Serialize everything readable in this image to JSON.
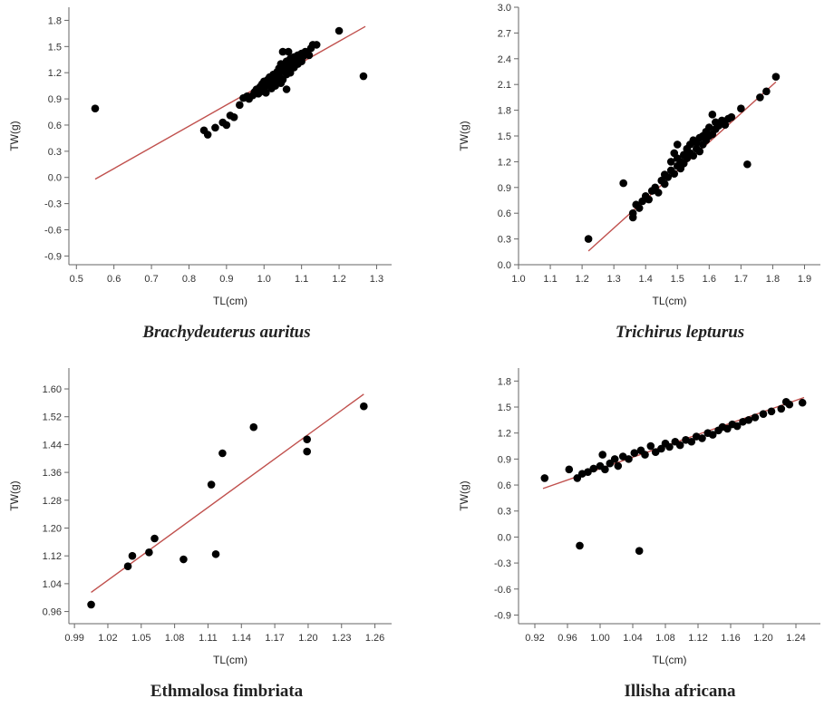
{
  "chart_data": [
    {
      "type": "scatter",
      "title": "Brachydeuterus auritus",
      "title_style": "italic",
      "xlabel": "TL(cm)",
      "ylabel": "TW(g)",
      "xlim": [
        0.48,
        1.34
      ],
      "ylim": [
        -1.0,
        1.95
      ],
      "xticks": [
        0.5,
        0.6,
        0.7,
        0.8,
        0.9,
        1.0,
        1.1,
        1.2,
        1.3
      ],
      "xtick_labels": [
        "0.5",
        "0.6",
        "0.7",
        "0.8",
        "0.9",
        "1.0",
        "1.1",
        "1.2",
        "1.3"
      ],
      "yticks": [
        -0.9,
        -0.6,
        -0.3,
        0.0,
        0.3,
        0.6,
        0.9,
        1.2,
        1.5,
        1.8
      ],
      "ytick_labels": [
        "-0.9",
        "-0.6",
        "-0.3",
        "0.0",
        "0.3",
        "0.6",
        "0.9",
        "1.2",
        "1.5",
        "1.8"
      ],
      "fit_line": {
        "x": [
          0.55,
          1.27
        ],
        "y": [
          -0.02,
          1.73
        ],
        "color": "#c0504d"
      },
      "points": [
        [
          0.55,
          0.79
        ],
        [
          0.84,
          0.54
        ],
        [
          0.85,
          0.49
        ],
        [
          0.87,
          0.57
        ],
        [
          0.89,
          0.63
        ],
        [
          0.9,
          0.6
        ],
        [
          0.91,
          0.71
        ],
        [
          0.92,
          0.69
        ],
        [
          0.935,
          0.83
        ],
        [
          0.945,
          0.91
        ],
        [
          0.955,
          0.93
        ],
        [
          0.96,
          0.9
        ],
        [
          0.97,
          0.94
        ],
        [
          0.975,
          0.98
        ],
        [
          0.98,
          1.01
        ],
        [
          0.985,
          0.96
        ],
        [
          0.99,
          1.04
        ],
        [
          0.99,
          0.98
        ],
        [
          0.995,
          1.07
        ],
        [
          1.0,
          1.1
        ],
        [
          1.0,
          1.02
        ],
        [
          1.005,
          0.97
        ],
        [
          1.01,
          1.12
        ],
        [
          1.01,
          1.06
        ],
        [
          1.015,
          1.15
        ],
        [
          1.02,
          1.09
        ],
        [
          1.02,
          1.02
        ],
        [
          1.025,
          1.18
        ],
        [
          1.03,
          1.13
        ],
        [
          1.03,
          1.05
        ],
        [
          1.035,
          1.21
        ],
        [
          1.035,
          1.1
        ],
        [
          1.04,
          1.25
        ],
        [
          1.04,
          1.16
        ],
        [
          1.045,
          1.3
        ],
        [
          1.045,
          1.08
        ],
        [
          1.05,
          1.44
        ],
        [
          1.05,
          1.22
        ],
        [
          1.05,
          1.12
        ],
        [
          1.055,
          1.27
        ],
        [
          1.06,
          1.33
        ],
        [
          1.06,
          1.18
        ],
        [
          1.06,
          1.01
        ],
        [
          1.065,
          1.44
        ],
        [
          1.065,
          1.24
        ],
        [
          1.07,
          1.36
        ],
        [
          1.07,
          1.28
        ],
        [
          1.07,
          1.2
        ],
        [
          1.075,
          1.31
        ],
        [
          1.08,
          1.38
        ],
        [
          1.08,
          1.26
        ],
        [
          1.085,
          1.34
        ],
        [
          1.09,
          1.4
        ],
        [
          1.09,
          1.3
        ],
        [
          1.095,
          1.37
        ],
        [
          1.1,
          1.42
        ],
        [
          1.1,
          1.33
        ],
        [
          1.105,
          1.39
        ],
        [
          1.11,
          1.44
        ],
        [
          1.12,
          1.4
        ],
        [
          1.125,
          1.48
        ],
        [
          1.13,
          1.52
        ],
        [
          1.14,
          1.52
        ],
        [
          1.2,
          1.68
        ],
        [
          1.265,
          1.16
        ]
      ]
    },
    {
      "type": "scatter",
      "title": "Trichirus lepturus",
      "title_style": "italic",
      "xlabel": "TL(cm)",
      "ylabel": "TW(g)",
      "xlim": [
        1.0,
        1.95
      ],
      "ylim": [
        0.0,
        3.0
      ],
      "xticks": [
        1.0,
        1.1,
        1.2,
        1.3,
        1.4,
        1.5,
        1.6,
        1.7,
        1.8,
        1.9
      ],
      "xtick_labels": [
        "1.0",
        "1.1",
        "1.2",
        "1.3",
        "1.4",
        "1.5",
        "1.6",
        "1.7",
        "1.8",
        "1.9"
      ],
      "yticks": [
        0.0,
        0.3,
        0.6,
        0.9,
        1.2,
        1.5,
        1.8,
        2.1,
        2.4,
        2.7,
        3.0
      ],
      "ytick_labels": [
        "0.0",
        "0.3",
        "0.6",
        "0.9",
        "1.2",
        "1.5",
        "1.8",
        "2.1",
        "2.4",
        "2.7",
        "3.0"
      ],
      "fit_line": {
        "x": [
          1.22,
          1.81
        ],
        "y": [
          0.16,
          2.13
        ],
        "color": "#c0504d"
      },
      "points": [
        [
          1.22,
          0.3
        ],
        [
          1.33,
          0.95
        ],
        [
          1.36,
          0.55
        ],
        [
          1.36,
          0.6
        ],
        [
          1.37,
          0.7
        ],
        [
          1.38,
          0.66
        ],
        [
          1.39,
          0.74
        ],
        [
          1.4,
          0.8
        ],
        [
          1.41,
          0.76
        ],
        [
          1.42,
          0.86
        ],
        [
          1.43,
          0.9
        ],
        [
          1.44,
          0.84
        ],
        [
          1.45,
          0.98
        ],
        [
          1.46,
          0.94
        ],
        [
          1.46,
          1.05
        ],
        [
          1.47,
          1.02
        ],
        [
          1.48,
          1.1
        ],
        [
          1.48,
          1.2
        ],
        [
          1.49,
          1.06
        ],
        [
          1.49,
          1.3
        ],
        [
          1.5,
          1.15
        ],
        [
          1.5,
          1.24
        ],
        [
          1.5,
          1.4
        ],
        [
          1.51,
          1.12
        ],
        [
          1.51,
          1.2
        ],
        [
          1.52,
          1.28
        ],
        [
          1.52,
          1.18
        ],
        [
          1.53,
          1.35
        ],
        [
          1.53,
          1.24
        ],
        [
          1.54,
          1.3
        ],
        [
          1.54,
          1.4
        ],
        [
          1.55,
          1.27
        ],
        [
          1.55,
          1.45
        ],
        [
          1.56,
          1.35
        ],
        [
          1.56,
          1.42
        ],
        [
          1.57,
          1.32
        ],
        [
          1.57,
          1.48
        ],
        [
          1.58,
          1.4
        ],
        [
          1.58,
          1.5
        ],
        [
          1.59,
          1.45
        ],
        [
          1.59,
          1.55
        ],
        [
          1.6,
          1.5
        ],
        [
          1.6,
          1.6
        ],
        [
          1.61,
          1.52
        ],
        [
          1.61,
          1.75
        ],
        [
          1.62,
          1.58
        ],
        [
          1.62,
          1.66
        ],
        [
          1.63,
          1.62
        ],
        [
          1.64,
          1.68
        ],
        [
          1.65,
          1.63
        ],
        [
          1.66,
          1.7
        ],
        [
          1.67,
          1.72
        ],
        [
          1.7,
          1.82
        ],
        [
          1.72,
          1.17
        ],
        [
          1.76,
          1.95
        ],
        [
          1.78,
          2.02
        ],
        [
          1.81,
          2.19
        ]
      ]
    },
    {
      "type": "scatter",
      "title": "Ethmalosa fimbriata",
      "title_style": "normal",
      "xlabel": "TL(cm)",
      "ylabel": "TW(g)",
      "xlim": [
        0.985,
        1.275
      ],
      "ylim": [
        0.925,
        1.66
      ],
      "xticks": [
        0.99,
        1.02,
        1.05,
        1.08,
        1.11,
        1.14,
        1.17,
        1.2,
        1.23,
        1.26
      ],
      "xtick_labels": [
        "0.99",
        "1.02",
        "1.05",
        "1.08",
        "1.11",
        "1.14",
        "1.17",
        "1.20",
        "1.23",
        "1.26"
      ],
      "yticks": [
        0.96,
        1.04,
        1.12,
        1.2,
        1.28,
        1.36,
        1.44,
        1.52,
        1.6
      ],
      "ytick_labels": [
        "0.96",
        "1.04",
        "1.12",
        "1.20",
        "1.28",
        "1.36",
        "1.44",
        "1.52",
        "1.60"
      ],
      "fit_line": {
        "x": [
          1.005,
          1.25
        ],
        "y": [
          1.015,
          1.585
        ],
        "color": "#c0504d"
      },
      "points": [
        [
          1.005,
          0.98
        ],
        [
          1.038,
          1.09
        ],
        [
          1.042,
          1.12
        ],
        [
          1.057,
          1.13
        ],
        [
          1.062,
          1.17
        ],
        [
          1.088,
          1.11
        ],
        [
          1.113,
          1.325
        ],
        [
          1.117,
          1.125
        ],
        [
          1.123,
          1.415
        ],
        [
          1.151,
          1.49
        ],
        [
          1.199,
          1.455
        ],
        [
          1.199,
          1.42
        ],
        [
          1.25,
          1.55
        ]
      ]
    },
    {
      "type": "scatter",
      "title": "Illisha africana",
      "title_style": "normal",
      "xlabel": "TL(cm)",
      "ylabel": "TW(g)",
      "xlim": [
        0.9,
        1.27
      ],
      "ylim": [
        -1.0,
        1.95
      ],
      "xticks": [
        0.92,
        0.96,
        1.0,
        1.04,
        1.08,
        1.12,
        1.16,
        1.2,
        1.24
      ],
      "xtick_labels": [
        "0.92",
        "0.96",
        "1.00",
        "1.04",
        "1.08",
        "1.12",
        "1.16",
        "1.20",
        "1.24"
      ],
      "yticks": [
        -0.9,
        -0.6,
        -0.3,
        0.0,
        0.3,
        0.6,
        0.9,
        1.2,
        1.5,
        1.8
      ],
      "ytick_labels": [
        "-0.9",
        "-0.6",
        "-0.3",
        "0.0",
        "0.3",
        "0.6",
        "0.9",
        "1.2",
        "1.5",
        "1.8"
      ],
      "fit_line": {
        "x": [
          0.93,
          1.25
        ],
        "y": [
          0.56,
          1.61
        ],
        "color": "#c0504d"
      },
      "points": [
        [
          0.932,
          0.68
        ],
        [
          0.962,
          0.78
        ],
        [
          0.972,
          0.68
        ],
        [
          0.975,
          -0.1
        ],
        [
          0.978,
          0.73
        ],
        [
          0.985,
          0.75
        ],
        [
          0.992,
          0.79
        ],
        [
          1.0,
          0.82
        ],
        [
          1.003,
          0.95
        ],
        [
          1.006,
          0.78
        ],
        [
          1.012,
          0.85
        ],
        [
          1.018,
          0.9
        ],
        [
          1.022,
          0.82
        ],
        [
          1.028,
          0.93
        ],
        [
          1.035,
          0.9
        ],
        [
          1.042,
          0.97
        ],
        [
          1.048,
          -0.16
        ],
        [
          1.05,
          1.0
        ],
        [
          1.055,
          0.95
        ],
        [
          1.062,
          1.05
        ],
        [
          1.068,
          0.98
        ],
        [
          1.075,
          1.02
        ],
        [
          1.08,
          1.08
        ],
        [
          1.085,
          1.04
        ],
        [
          1.092,
          1.1
        ],
        [
          1.098,
          1.06
        ],
        [
          1.105,
          1.12
        ],
        [
          1.112,
          1.1
        ],
        [
          1.118,
          1.16
        ],
        [
          1.125,
          1.14
        ],
        [
          1.132,
          1.2
        ],
        [
          1.138,
          1.18
        ],
        [
          1.145,
          1.23
        ],
        [
          1.15,
          1.27
        ],
        [
          1.156,
          1.25
        ],
        [
          1.162,
          1.3
        ],
        [
          1.168,
          1.28
        ],
        [
          1.175,
          1.33
        ],
        [
          1.182,
          1.35
        ],
        [
          1.19,
          1.38
        ],
        [
          1.2,
          1.42
        ],
        [
          1.21,
          1.45
        ],
        [
          1.222,
          1.48
        ],
        [
          1.228,
          1.56
        ],
        [
          1.232,
          1.53
        ],
        [
          1.248,
          1.55
        ]
      ]
    }
  ]
}
